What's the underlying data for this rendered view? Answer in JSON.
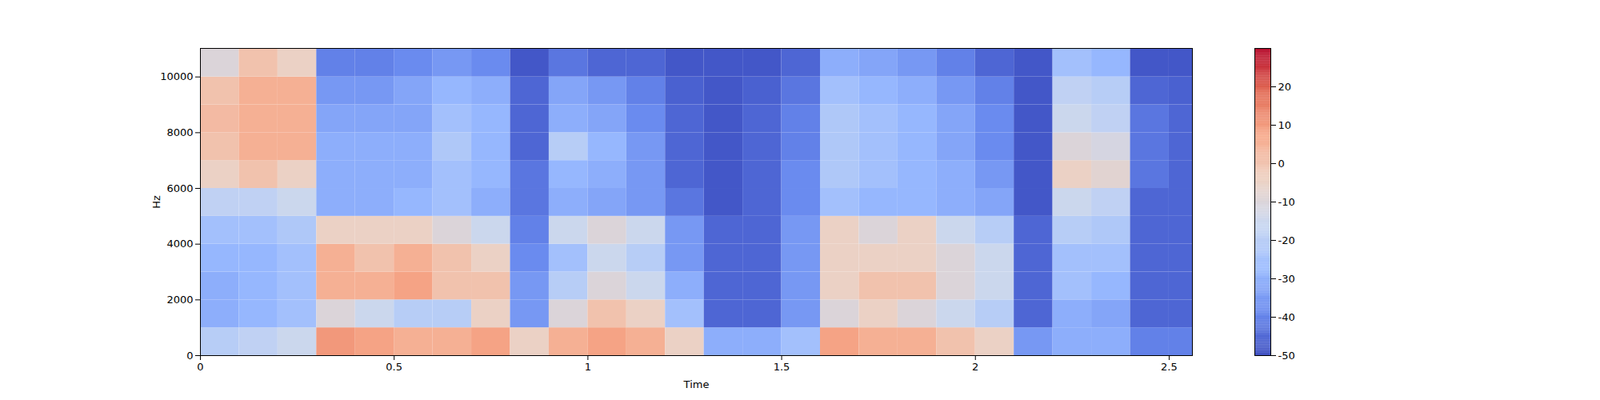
{
  "chart_data": {
    "type": "heatmap",
    "xlabel": "Time",
    "ylabel": "Hz",
    "xlim": [
      0,
      2.56
    ],
    "ylim": [
      0,
      11025
    ],
    "xticks": [
      0,
      0.5,
      1,
      1.5,
      2,
      2.5
    ],
    "yticks": [
      0,
      2000,
      4000,
      6000,
      8000,
      10000
    ],
    "color": "coolwarm",
    "x_bins": [
      0,
      0.1,
      0.2,
      0.3,
      0.4,
      0.5,
      0.6,
      0.7,
      0.8,
      0.9,
      1.0,
      1.1,
      1.2,
      1.3,
      1.4,
      1.5,
      1.6,
      1.7,
      1.8,
      1.9,
      2.0,
      2.1,
      2.2,
      2.3,
      2.4,
      2.5,
      2.56
    ],
    "y_bins": [
      0,
      1000,
      2000,
      3000,
      4000,
      5000,
      6000,
      7000,
      8000,
      9000,
      10000,
      11025
    ],
    "cells": [
      [
        -20,
        -18,
        -15,
        10,
        8,
        5,
        5,
        8,
        -5,
        5,
        8,
        5,
        -5,
        -30,
        -30,
        -25,
        8,
        5,
        5,
        0,
        -5,
        -35,
        -30,
        -30,
        -40,
        -40
      ],
      [
        -30,
        -28,
        -25,
        -10,
        -15,
        -20,
        -20,
        -5,
        -35,
        -10,
        0,
        -5,
        -25,
        -45,
        -45,
        -35,
        -10,
        -5,
        -10,
        -15,
        -20,
        -45,
        -30,
        -32,
        -45,
        -45
      ],
      [
        -30,
        -28,
        -25,
        5,
        5,
        8,
        0,
        0,
        -35,
        -20,
        -10,
        -15,
        -30,
        -45,
        -45,
        -35,
        -5,
        0,
        0,
        -10,
        -15,
        -45,
        -25,
        -28,
        -45,
        -45
      ],
      [
        -28,
        -28,
        -25,
        5,
        0,
        5,
        0,
        -5,
        -38,
        -25,
        -15,
        -20,
        -35,
        -45,
        -45,
        -35,
        -5,
        -5,
        -5,
        -10,
        -15,
        -45,
        -25,
        -25,
        -45,
        -45
      ],
      [
        -25,
        -25,
        -22,
        -5,
        -5,
        -5,
        -10,
        -15,
        -40,
        -15,
        -10,
        -15,
        -35,
        -45,
        -45,
        -35,
        -5,
        -10,
        -5,
        -15,
        -20,
        -45,
        -20,
        -22,
        -45,
        -45
      ],
      [
        -18,
        -18,
        -15,
        -30,
        -30,
        -28,
        -25,
        -30,
        -42,
        -30,
        -32,
        -35,
        -42,
        -48,
        -45,
        -38,
        -25,
        -28,
        -28,
        -30,
        -32,
        -48,
        -15,
        -18,
        -45,
        -45
      ],
      [
        -5,
        0,
        -5,
        -30,
        -30,
        -30,
        -25,
        -28,
        -42,
        -28,
        -30,
        -35,
        -45,
        -48,
        -45,
        -38,
        -22,
        -25,
        -28,
        -30,
        -35,
        -48,
        -5,
        -8,
        -42,
        -45
      ],
      [
        0,
        5,
        5,
        -30,
        -30,
        -30,
        -22,
        -28,
        -45,
        -20,
        -28,
        -35,
        -45,
        -48,
        -45,
        -40,
        -22,
        -25,
        -28,
        -32,
        -38,
        -48,
        -10,
        -12,
        -42,
        -45
      ],
      [
        2,
        5,
        5,
        -32,
        -32,
        -32,
        -25,
        -28,
        -45,
        -30,
        -32,
        -38,
        -45,
        -48,
        -45,
        -40,
        -22,
        -25,
        -28,
        -32,
        -38,
        -48,
        -15,
        -18,
        -42,
        -45
      ],
      [
        0,
        5,
        5,
        -35,
        -35,
        -32,
        -28,
        -30,
        -45,
        -32,
        -35,
        -40,
        -46,
        -48,
        -46,
        -42,
        -25,
        -28,
        -30,
        -35,
        -40,
        -48,
        -18,
        -20,
        -45,
        -46
      ],
      [
        -10,
        0,
        -5,
        -40,
        -40,
        -38,
        -35,
        -38,
        -48,
        -42,
        -45,
        -45,
        -48,
        -48,
        -48,
        -45,
        -30,
        -32,
        -35,
        -40,
        -45,
        -48,
        -25,
        -28,
        -48,
        -48
      ]
    ],
    "colorbar": {
      "range": [
        -50,
        30
      ],
      "ticks": [
        -50,
        -40,
        -30,
        -20,
        -10,
        0,
        10,
        20
      ]
    }
  }
}
